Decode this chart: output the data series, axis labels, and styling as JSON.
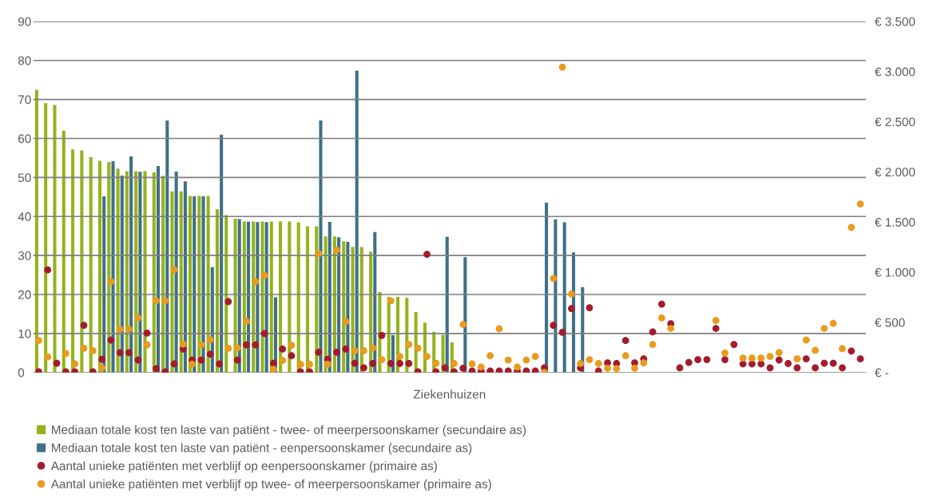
{
  "chart_data": {
    "type": "bar",
    "xlabel": "Ziekenhuizen",
    "categories": [
      null,
      null,
      null,
      null,
      null,
      null,
      null,
      null,
      null,
      null,
      null,
      null,
      null,
      null,
      null,
      null,
      null,
      null,
      null,
      null,
      null,
      null,
      null,
      null,
      null,
      null,
      null,
      null,
      null,
      null,
      null,
      null,
      null,
      null,
      null,
      null,
      null,
      null,
      null,
      null,
      null,
      null,
      null,
      null,
      null,
      null,
      null,
      null,
      null,
      null,
      null,
      null,
      null,
      null,
      null,
      null,
      null,
      null,
      null,
      null,
      null,
      null,
      null,
      null,
      null,
      null,
      null,
      null,
      null,
      null,
      null,
      null,
      null,
      null,
      null,
      null,
      null,
      null,
      null,
      null,
      null,
      null,
      null,
      null,
      null,
      null,
      null,
      null,
      null,
      null,
      null,
      null
    ],
    "series": [
      {
        "name": "Mediaan totale kost ten laste van patiënt - twee- of meerpersoonskamer (secundaire as)",
        "axis": "y2",
        "color": "#95b31c",
        "values": [
          2818,
          2685,
          2667,
          2411,
          2224,
          2214,
          2147,
          2110,
          2099,
          2033,
          2006,
          2006,
          2006,
          1995,
          1961,
          1806,
          1806,
          1761,
          1761,
          1761,
          1628,
          1569,
          1534,
          1505,
          1505,
          1505,
          1505,
          1505,
          1505,
          1497,
          1457,
          1457,
          1356,
          1356,
          1308,
          1252,
          1252,
          1204,
          802,
          754,
          754,
          743,
          602,
          498,
          405,
          376,
          301,
          null,
          null,
          null,
          null,
          null,
          null,
          null,
          null,
          null,
          null,
          null,
          null,
          null,
          null,
          null,
          null,
          null,
          null,
          null,
          null,
          null,
          null,
          null,
          null,
          null,
          null,
          null,
          null,
          null,
          null,
          null,
          null,
          null,
          null,
          null,
          null,
          null,
          null,
          null,
          null,
          null,
          null,
          null,
          null,
          null
        ]
      },
      {
        "name": "Mediaan totale kost ten laste van patiënt - eenpersoonskamer (secundaire as)",
        "axis": "y2",
        "color": "#3e7086",
        "values": [
          null,
          null,
          null,
          null,
          null,
          null,
          null,
          1756,
          2107,
          1963,
          2155,
          2001,
          null,
          2059,
          2512,
          2003,
          1905,
          1756,
          1756,
          1050,
          2371,
          null,
          1529,
          1503,
          1500,
          1500,
          749,
          null,
          null,
          null,
          null,
          2512,
          1502,
          1348,
          1303,
          3010,
          null,
          1401,
          null,
          373,
          null,
          null,
          null,
          null,
          null,
          1353,
          null,
          1150,
          null,
          null,
          null,
          null,
          null,
          null,
          null,
          null,
          1693,
          1526,
          1497,
          1198,
          851,
          null,
          null,
          null,
          null,
          null,
          null,
          null,
          null,
          null,
          null,
          null,
          null,
          null,
          null,
          null,
          null,
          null,
          null,
          null,
          null,
          null,
          null,
          null,
          null,
          null,
          null,
          null,
          null,
          null,
          null,
          null
        ]
      },
      {
        "name": "Aantal unieke patiënten met verblijf op eenpersoonskamer (primaire as)",
        "type": "scatter",
        "color": "#a31b2c",
        "values": [
          0.2,
          26.3,
          2.4,
          0.2,
          0.2,
          12.1,
          0.2,
          3.4,
          8.3,
          5.1,
          5.1,
          3.2,
          10.1,
          1.0,
          0.2,
          2.2,
          6.0,
          3.2,
          3.2,
          4.7,
          2.2,
          18.2,
          3.2,
          7.1,
          7.1,
          10.0,
          2.4,
          6.0,
          4.3,
          0.2,
          0.2,
          5.2,
          3.4,
          5.2,
          6.0,
          2.4,
          1.2,
          2.3,
          9.5,
          2.3,
          2.3,
          2.3,
          0.2,
          30.3,
          0.2,
          1.2,
          0.2,
          1.1,
          0.4,
          0.4,
          0.4,
          0.4,
          0.4,
          0.4,
          0.4,
          0.4,
          1.2,
          12.1,
          10.3,
          16.4,
          1.2,
          16.6,
          0.4,
          2.5,
          2.3,
          8.2,
          2.5,
          3.5,
          10.4,
          17.5,
          12.5,
          1.2,
          2.6,
          3.3,
          3.3,
          11.3,
          3.3,
          7.2,
          2.2,
          2.2,
          2.2,
          1.2,
          3.2,
          2.3,
          1.2,
          3.5,
          1.2,
          2.4,
          2.4,
          1.2,
          5.5,
          3.5
        ]
      },
      {
        "name": "Aantal unieke patiënten met verblijf op twee- of meerpersoonskamer (primaire as)",
        "type": "scatter",
        "color": "#e99b1e",
        "values": [
          8.2,
          4.0,
          null,
          4.9,
          2.2,
          6.2,
          5.6,
          1.2,
          23.3,
          11.1,
          11.1,
          14.0,
          7.1,
          18.4,
          18.4,
          26.3,
          7.3,
          2.1,
          7.1,
          8.4,
          null,
          6.2,
          6.3,
          13.1,
          23.3,
          24.9,
          0.8,
          3.1,
          7.0,
          2.1,
          2.1,
          30.5,
          2.1,
          31.4,
          13.0,
          5.6,
          5.6,
          6.3,
          3.3,
          18.4,
          4.1,
          7.2,
          6.2,
          4.1,
          2.4,
          null,
          2.3,
          12.3,
          2.2,
          1.4,
          4.3,
          11.2,
          3.2,
          1.4,
          3.2,
          4.1,
          0,
          24.1,
          78.3,
          20.1,
          2.3,
          3.3,
          2.3,
          1.1,
          1.0,
          4.3,
          1.1,
          2.5,
          7.2,
          14.0,
          11.3,
          null,
          null,
          null,
          null,
          13.3,
          5.0,
          null,
          3.7,
          3.7,
          3.7,
          4.1,
          5.1,
          null,
          3.5,
          8.3,
          5.7,
          11.3,
          12.6,
          6.1,
          37.2,
          43.2
        ]
      }
    ],
    "ylim": [
      0,
      90
    ],
    "yticks": [
      0,
      10,
      20,
      30,
      40,
      50,
      60,
      70,
      80,
      90
    ],
    "y2lim": [
      0,
      3500
    ],
    "y2ticks": [
      {
        "value": 0,
        "label": "€ -"
      },
      {
        "value": 500,
        "label": "€ 500"
      },
      {
        "value": 1000,
        "label": "€ 1.000"
      },
      {
        "value": 1500,
        "label": "€ 1.500"
      },
      {
        "value": 2000,
        "label": "€ 2.000"
      },
      {
        "value": 2500,
        "label": "€ 2.500"
      },
      {
        "value": 3000,
        "label": "€ 3.000"
      },
      {
        "value": 3500,
        "label": "€ 3.500"
      }
    ],
    "grid": "y",
    "legend": "bottom"
  }
}
